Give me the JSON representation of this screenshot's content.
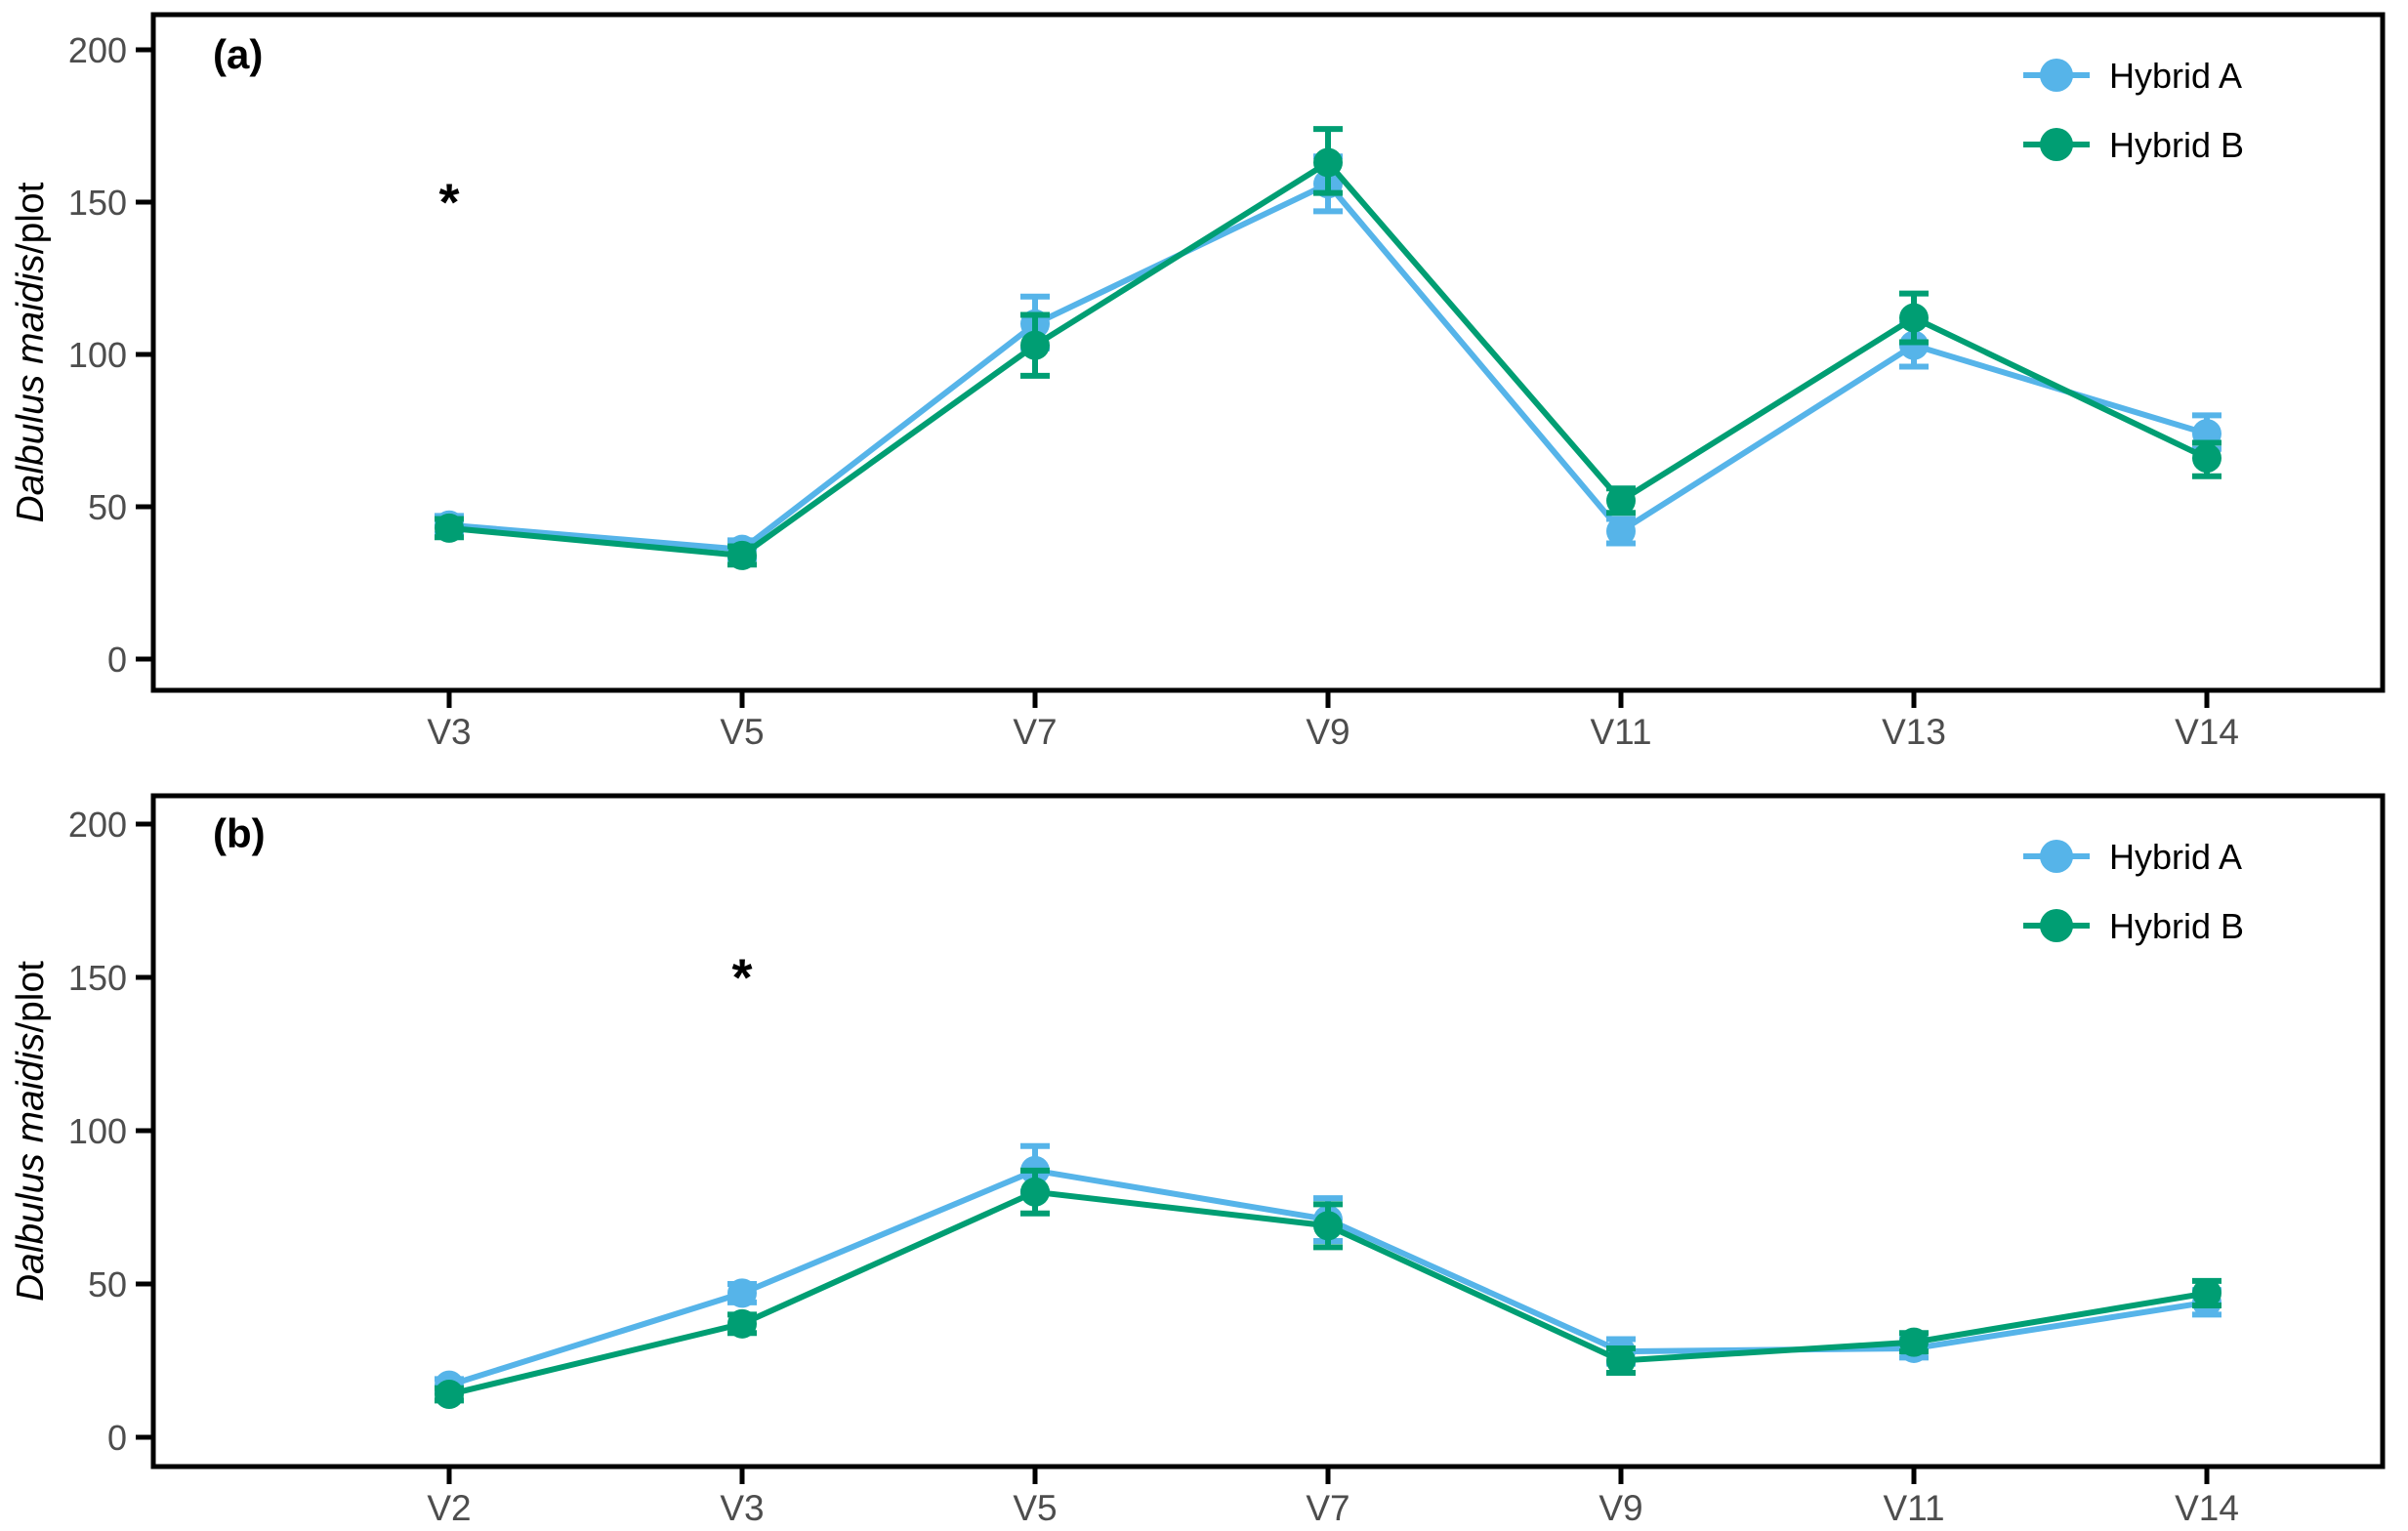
{
  "figure": {
    "background": "#FFFFFF",
    "axis_line_color": "#000000",
    "tick_label_color": "#4D4D4D",
    "y_axis_title": {
      "italic_part": "Dalbulus maidis",
      "regular_part": "/plot"
    },
    "legend": {
      "position": "top-right",
      "items": [
        {
          "label": "Hybrid A",
          "color": "#56B4E9"
        },
        {
          "label": "Hybrid B",
          "color": "#009E73"
        }
      ]
    }
  },
  "chart_data": [
    {
      "type": "line",
      "panel_key": "a",
      "panel_label": "(a)",
      "categories": [
        "V3",
        "V5",
        "V7",
        "V9",
        "V11",
        "V13",
        "V14"
      ],
      "ylabel": "Dalbulus maidis/plot",
      "ylim": [
        0,
        200
      ],
      "yticks": [
        0,
        50,
        100,
        150,
        200
      ],
      "grid": false,
      "legend_position": "top-right",
      "legend": [
        "Hybrid A",
        "Hybrid B"
      ],
      "significance_markers": [
        {
          "category": "V3",
          "y": 153,
          "symbol": "*"
        }
      ],
      "series": [
        {
          "name": "Hybrid A",
          "color": "#56B4E9",
          "values": [
            44,
            36,
            110,
            156,
            42,
            103,
            74
          ],
          "error_low": [
            41,
            33,
            102,
            147,
            38,
            96,
            69
          ],
          "error_high": [
            47,
            39,
            119,
            165,
            46,
            110,
            80
          ]
        },
        {
          "name": "Hybrid B",
          "color": "#009E73",
          "values": [
            43,
            34,
            103,
            163,
            52,
            112,
            66
          ],
          "error_low": [
            40,
            31,
            93,
            153,
            48,
            104,
            60
          ],
          "error_high": [
            46,
            37,
            113,
            174,
            56,
            120,
            71
          ]
        }
      ]
    },
    {
      "type": "line",
      "panel_key": "b",
      "panel_label": "(b)",
      "categories": [
        "V2",
        "V3",
        "V5",
        "V7",
        "V9",
        "V11",
        "V14"
      ],
      "ylabel": "Dalbulus maidis/plot",
      "ylim": [
        0,
        200
      ],
      "yticks": [
        0,
        50,
        100,
        150,
        200
      ],
      "grid": false,
      "legend_position": "top-right",
      "legend": [
        "Hybrid A",
        "Hybrid B"
      ],
      "significance_markers": [
        {
          "category": "V3",
          "y": 153,
          "symbol": "*"
        }
      ],
      "series": [
        {
          "name": "Hybrid A",
          "color": "#56B4E9",
          "values": [
            17,
            47,
            87,
            71,
            28,
            29,
            44
          ],
          "error_low": [
            15,
            44,
            80,
            64,
            24,
            26,
            40
          ],
          "error_high": [
            19,
            50,
            95,
            78,
            32,
            32,
            48
          ]
        },
        {
          "name": "Hybrid B",
          "color": "#009E73",
          "values": [
            14,
            37,
            80,
            69,
            25,
            31,
            47
          ],
          "error_low": [
            12,
            34,
            73,
            62,
            21,
            28,
            43
          ],
          "error_high": [
            16,
            40,
            87,
            76,
            29,
            34,
            51
          ]
        }
      ]
    }
  ]
}
